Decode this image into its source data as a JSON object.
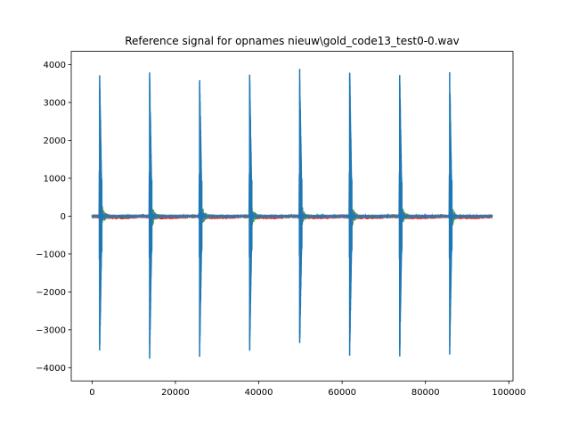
{
  "chart_data": {
    "type": "line",
    "title": "Reference signal for opnames nieuw\\gold_code13_test0-0.wav",
    "xlabel": "",
    "ylabel": "",
    "xlim": [
      -5000,
      101000
    ],
    "ylim": [
      -4350,
      4350
    ],
    "xticks": [
      0,
      20000,
      40000,
      60000,
      80000,
      100000
    ],
    "xtick_labels": [
      "0",
      "20000",
      "40000",
      "60000",
      "80000",
      "100000"
    ],
    "yticks": [
      -4000,
      -3000,
      -2000,
      -1000,
      0,
      1000,
      2000,
      3000,
      4000
    ],
    "ytick_labels": [
      "−4000",
      "−3000",
      "−2000",
      "−1000",
      "0",
      "1000",
      "2000",
      "3000",
      "4000"
    ],
    "grid": false,
    "legend": "none",
    "series_colors": [
      "#d62728",
      "#2ca02c",
      "#9467bd",
      "#1f77b4"
    ],
    "bursts": [
      {
        "x": 1800,
        "max": 4000,
        "min": -3850
      },
      {
        "x": 13800,
        "max": 3930,
        "min": -3900
      },
      {
        "x": 25800,
        "max": 3800,
        "min": -3850
      },
      {
        "x": 37800,
        "max": 3880,
        "min": -3750
      },
      {
        "x": 49800,
        "max": 3960,
        "min": -3650
      },
      {
        "x": 61800,
        "max": 4010,
        "min": -3800
      },
      {
        "x": 73800,
        "max": 3980,
        "min": -3870
      },
      {
        "x": 85800,
        "max": 3870,
        "min": -3780
      }
    ],
    "signal_end": 96000
  }
}
